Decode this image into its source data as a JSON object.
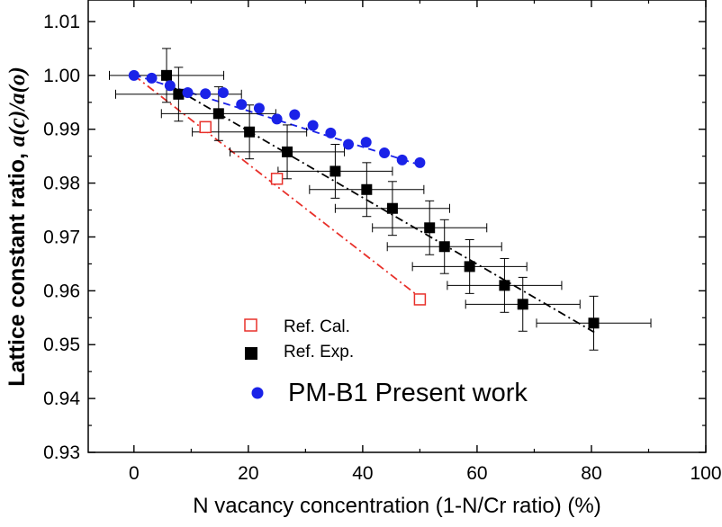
{
  "chart_data": {
    "type": "scatter",
    "xlabel": "N vacancy concentration (1-N/Cr ratio) (%)",
    "ylabel_main": "Lattice constant ratio, ",
    "ylabel_math": "a(c)/a(o)",
    "xlim": [
      -8,
      100
    ],
    "ylim": [
      0.93,
      1.014
    ],
    "xticks": [
      0,
      20,
      40,
      60,
      80,
      100
    ],
    "xtick_labels": [
      "0",
      "20",
      "40",
      "60",
      "80",
      "100"
    ],
    "yticks": [
      0.93,
      0.94,
      0.95,
      0.96,
      0.97,
      0.98,
      0.99,
      1.0,
      1.01
    ],
    "ytick_labels": [
      "0.93",
      "0.94",
      "0.95",
      "0.96",
      "0.97",
      "0.98",
      "0.99",
      "1.00",
      "1.01"
    ],
    "grid": false,
    "legend_placement": "lower-center",
    "series": [
      {
        "name": "Ref. Cal.",
        "marker": "open-square",
        "color": "#e8302a",
        "fit_line": {
          "style": "dash-dot",
          "color": "#e8302a",
          "x": [
            0,
            50
          ],
          "y": [
            1.0,
            0.9588
          ]
        },
        "x": [
          12.5,
          25,
          50
        ],
        "y": [
          0.9904,
          0.9808,
          0.9584
        ]
      },
      {
        "name": "Ref. Exp.",
        "marker": "filled-square",
        "color": "#000000",
        "fit_line": {
          "style": "dash-dot",
          "color": "#000000",
          "x": [
            7,
            80.5
          ],
          "y": [
            0.9977,
            0.9523
          ]
        },
        "points": [
          {
            "x": 5.7,
            "y": 1.0,
            "xerr": 10,
            "yerr": 0.005
          },
          {
            "x": 7.8,
            "y": 0.9965,
            "xerr": 11,
            "yerr": 0.005
          },
          {
            "x": 14.8,
            "y": 0.9929,
            "xerr": 10,
            "yerr": 0.005
          },
          {
            "x": 20.2,
            "y": 0.9895,
            "xerr": 10,
            "yerr": 0.005
          },
          {
            "x": 26.8,
            "y": 0.9858,
            "xerr": 10,
            "yerr": 0.005
          },
          {
            "x": 35.2,
            "y": 0.9822,
            "xerr": 10,
            "yerr": 0.005
          },
          {
            "x": 40.7,
            "y": 0.9788,
            "xerr": 10,
            "yerr": 0.005
          },
          {
            "x": 45.2,
            "y": 0.9753,
            "xerr": 10,
            "yerr": 0.005
          },
          {
            "x": 51.7,
            "y": 0.9717,
            "xerr": 10,
            "yerr": 0.005
          },
          {
            "x": 54.3,
            "y": 0.9682,
            "xerr": 10,
            "yerr": 0.005
          },
          {
            "x": 58.7,
            "y": 0.9645,
            "xerr": 10,
            "yerr": 0.005
          },
          {
            "x": 64.8,
            "y": 0.961,
            "xerr": 10,
            "yerr": 0.005
          },
          {
            "x": 68.0,
            "y": 0.9575,
            "xerr": 10,
            "yerr": 0.005
          },
          {
            "x": 80.4,
            "y": 0.954,
            "xerr": 10,
            "yerr": 0.005
          }
        ]
      },
      {
        "name": "PM-B1 Present work",
        "marker": "filled-circle",
        "color": "#1a22e8",
        "fit_line": {
          "style": "dashed",
          "color": "#1a22e8",
          "x": [
            0,
            50.5
          ],
          "y": [
            1.0001,
            0.9832
          ]
        },
        "x": [
          0,
          3.1,
          6.3,
          9.4,
          12.5,
          15.6,
          18.8,
          21.9,
          25.0,
          28.1,
          31.3,
          34.4,
          37.5,
          40.6,
          43.8,
          46.9,
          50.0
        ],
        "y": [
          1.0,
          0.9995,
          0.9981,
          0.9968,
          0.9966,
          0.9968,
          0.9946,
          0.9939,
          0.9919,
          0.9927,
          0.9907,
          0.9893,
          0.9872,
          0.9876,
          0.9856,
          0.9843,
          0.9838
        ]
      }
    ]
  }
}
